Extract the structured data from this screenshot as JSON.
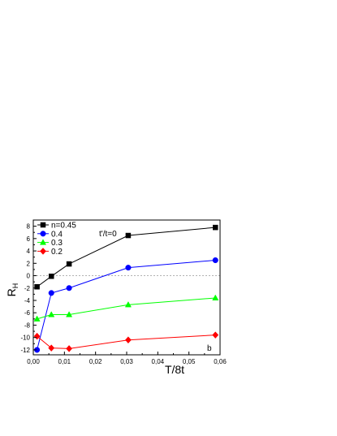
{
  "chart_data": {
    "type": "line",
    "xlabel": "T/8t",
    "ylabel": "R",
    "ylabel_subscript": "H",
    "xlim": [
      0.0,
      0.06
    ],
    "ylim": [
      -12.8,
      9
    ],
    "xticks": [
      "0,00",
      "0,01",
      "0,02",
      "0,03",
      "0,04",
      "0,05",
      "0,06"
    ],
    "xtick_values": [
      0.0,
      0.01,
      0.02,
      0.03,
      0.04,
      0.05,
      0.06
    ],
    "yticks": [
      "-12",
      "-10",
      "-8",
      "-6",
      "-4",
      "-2",
      "0",
      "2",
      "4",
      "6",
      "8"
    ],
    "ytick_values": [
      -12,
      -10,
      -8,
      -6,
      -4,
      -2,
      0,
      2,
      4,
      6,
      8
    ],
    "annotation": "t'/t=0",
    "panel_label": "b",
    "zero_line": true,
    "grid": false,
    "legend_position": "top-left",
    "series": [
      {
        "name": "n=0.45",
        "color": "#000000",
        "marker": "square",
        "x": [
          0.0012,
          0.0058,
          0.0115,
          0.0305,
          0.0585
        ],
        "y": [
          -1.8,
          -0.1,
          1.9,
          6.5,
          7.8
        ]
      },
      {
        "name": "0.4",
        "color": "#0000ff",
        "marker": "circle",
        "x": [
          0.0012,
          0.0058,
          0.0115,
          0.0305,
          0.0585
        ],
        "y": [
          -12.0,
          -2.8,
          -2.0,
          1.3,
          2.5
        ]
      },
      {
        "name": "0.3",
        "color": "#00ff00",
        "marker": "triangle",
        "x": [
          0.0012,
          0.0058,
          0.0115,
          0.0305,
          0.0585
        ],
        "y": [
          -7.0,
          -6.3,
          -6.3,
          -4.7,
          -3.6
        ]
      },
      {
        "name": "0.2",
        "color": "#ff0000",
        "marker": "diamond",
        "x": [
          0.0012,
          0.0058,
          0.0115,
          0.0305,
          0.0585
        ],
        "y": [
          -9.8,
          -11.7,
          -11.8,
          -10.4,
          -9.6
        ]
      }
    ]
  }
}
